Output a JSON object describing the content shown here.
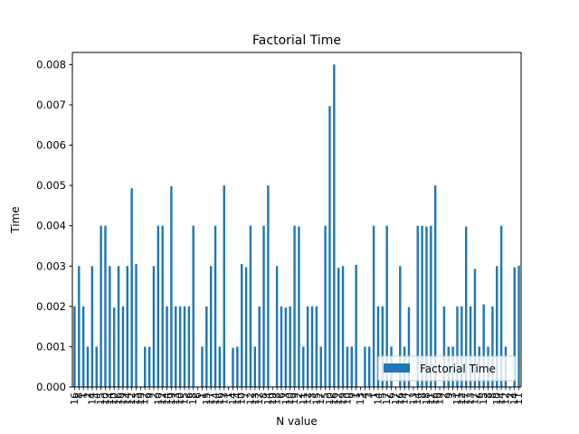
{
  "chart_data": {
    "type": "bar",
    "title": "Factorial Time",
    "xlabel": "N value",
    "ylabel": "Time",
    "ylim": [
      0,
      0.0083
    ],
    "yticks": [
      "0.000",
      "0.001",
      "0.002",
      "0.003",
      "0.004",
      "0.005",
      "0.006",
      "0.007",
      "0.008"
    ],
    "grid": false,
    "legend": "lower-right",
    "bar_color": "#1f77b4",
    "series": [
      {
        "name": "Factorial Time",
        "values": [
          0.002,
          0.003,
          0.002,
          0.001,
          0.003,
          0.001,
          0.004,
          0.004,
          0.003,
          0.00197,
          0.003,
          0.002,
          0.003,
          0.00493,
          0.00305,
          0,
          0.001,
          0.001,
          0.003,
          0.004,
          0.004,
          0.002,
          0.00498,
          0.002,
          0.002,
          0.002,
          0.002,
          0.004,
          0,
          0.001,
          0.002,
          0.003,
          0.004,
          0.001,
          0.005,
          0,
          0.00097,
          0.001,
          0.00305,
          0.00297,
          0.004,
          0.001,
          0.002,
          0.004,
          0.005,
          0,
          0.003,
          0.002,
          0.00197,
          0.002,
          0.004,
          0.00398,
          0.001,
          0.002,
          0.002,
          0.002,
          0.001,
          0.004,
          0.00697,
          0.008,
          0.00296,
          0.003,
          0.001,
          0.001,
          0.00303,
          0,
          0.001,
          0.001,
          0.004,
          0.002,
          0.002,
          0.004,
          0.001,
          0,
          0.003,
          0.001,
          0.00198,
          0,
          0.004,
          0.004,
          0.00398,
          0.004,
          0.005,
          0,
          0.002,
          0.001,
          0.001,
          0.002,
          0.002,
          0.00398,
          0.002,
          0.00293,
          0.001,
          0.00205,
          0.001,
          0.002,
          0.003,
          0.004,
          0.001,
          0,
          0.00297,
          0.00301
        ]
      }
    ],
    "categories": [
      "16",
      "8",
      "1",
      "2",
      "14",
      "4",
      "15",
      "10",
      "14",
      "10",
      "16",
      "19",
      "14",
      "12",
      "13",
      "19",
      "12",
      "9",
      "2",
      "10",
      "12",
      "14",
      "19",
      "13",
      "10",
      "15",
      "6",
      "18",
      "6",
      "1",
      "15",
      "17",
      "14",
      "16",
      "13",
      "1",
      "14",
      "14",
      "10",
      "7",
      "12",
      "13",
      "17",
      "8",
      "14",
      "19",
      "18",
      "6",
      "13",
      "10",
      "19",
      "2",
      "11",
      "12",
      "3",
      "15",
      "17",
      "5",
      "10",
      "16",
      "12",
      "19",
      "10",
      "9",
      "1",
      "13",
      "4",
      "3",
      "1",
      "14",
      "5",
      "17",
      "6",
      "17",
      "16",
      "14",
      "7",
      "13",
      "14",
      "8",
      "18",
      "11",
      "16",
      "19",
      "2",
      "9",
      "3",
      "11",
      "12",
      "17",
      "13",
      "17",
      "6",
      "15",
      "8",
      "8",
      "10",
      "14",
      "12",
      "2",
      "14",
      "11"
    ]
  }
}
